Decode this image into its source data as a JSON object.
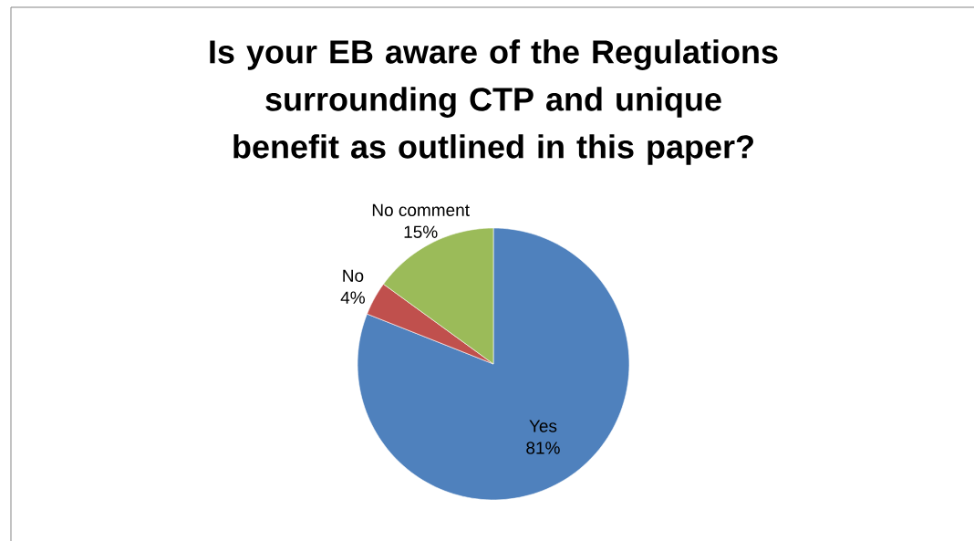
{
  "chart_data": {
    "type": "pie",
    "title": "Is your EB aware of the Regulations surrounding CTP and unique benefit as outlined in this paper?",
    "categories": [
      "Yes",
      "No",
      "No comment"
    ],
    "values": [
      81,
      4,
      15
    ],
    "value_labels": [
      "81%",
      "4%",
      "15%"
    ],
    "colors": [
      "#4f81bd",
      "#c0504d",
      "#9bbb59"
    ]
  }
}
